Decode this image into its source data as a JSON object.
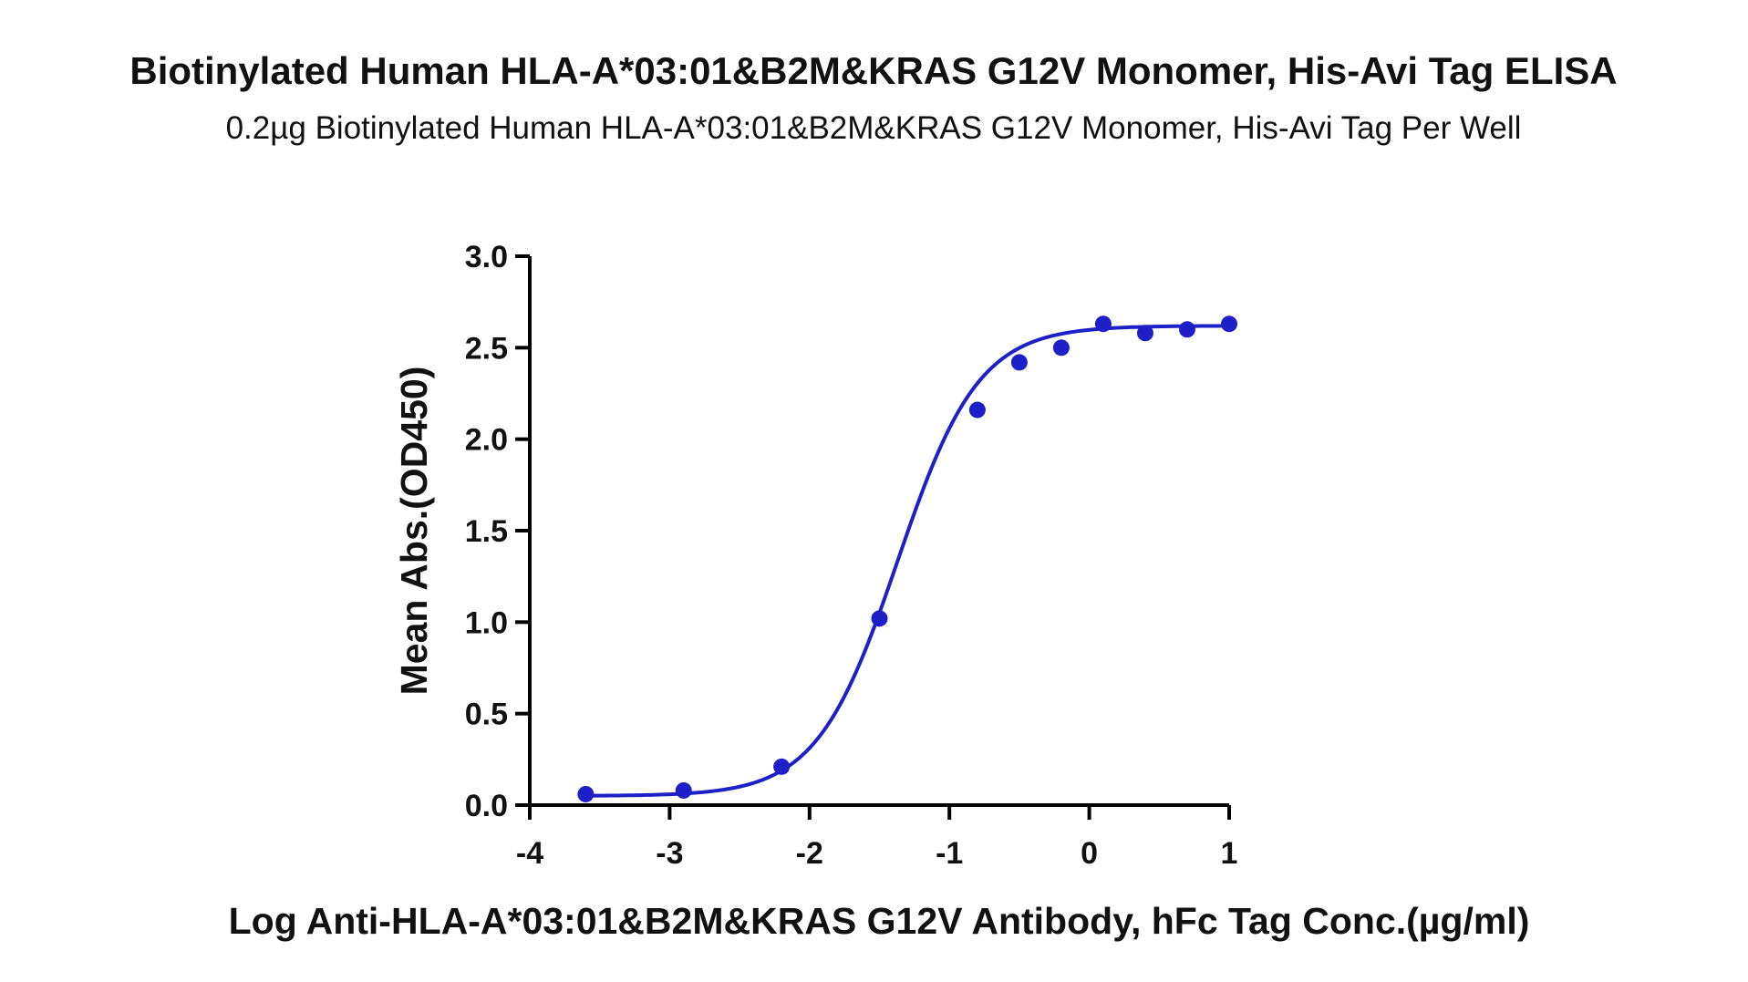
{
  "chart_data": {
    "type": "scatter",
    "title": "Biotinylated Human HLA-A*03:01&B2M&KRAS G12V Monomer, His-Avi Tag ELISA",
    "subtitle": "0.2µg Biotinylated Human HLA-A*03:01&B2M&KRAS G12V Monomer, His-Avi Tag Per Well",
    "xlabel": "Log Anti-HLA-A*03:01&B2M&KRAS G12V Antibody, hFc Tag Conc.(µg/ml)",
    "ylabel": "Mean Abs.(OD450)",
    "xlim": [
      -4,
      1
    ],
    "ylim": [
      0,
      3
    ],
    "x_ticks": [
      "-4",
      "-3",
      "-2",
      "-1",
      "0",
      "1"
    ],
    "y_ticks": [
      "0.0",
      "0.5",
      "1.0",
      "1.5",
      "2.0",
      "2.5",
      "3.0"
    ],
    "grid": false,
    "series": [
      {
        "x": [
          -3.6,
          -2.9,
          -2.2,
          -1.5,
          -0.8,
          -0.5,
          -0.2,
          0.1,
          0.4,
          0.7,
          1.0
        ],
        "y": [
          0.06,
          0.08,
          0.21,
          1.02,
          2.16,
          2.42,
          2.5,
          2.63,
          2.58,
          2.6,
          2.63
        ],
        "fit": "sigmoidal",
        "fit_params": {
          "bottom": 0.05,
          "top": 2.62,
          "logEC50": -1.37,
          "hill": 1.5
        }
      }
    ],
    "colors": {
      "series": "#1f1fc8",
      "axes": "#000000",
      "text": "#111111"
    }
  }
}
